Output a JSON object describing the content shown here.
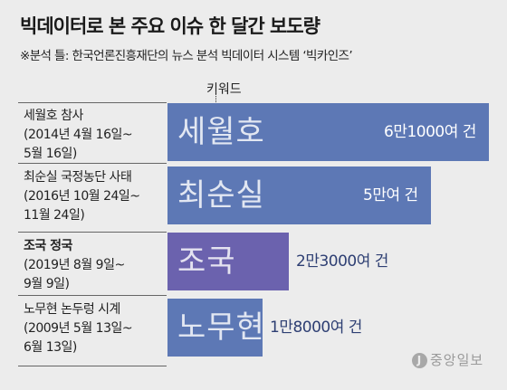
{
  "header": {
    "title": "빅데이터로 본 주요 이슈 한 달간 보도량",
    "source": "※분석 틀: 한국언론진흥재단의 뉴스 분석 빅데이터 시스템 ‘빅카인즈’"
  },
  "legend": {
    "label": "키워드"
  },
  "logo": {
    "text": "중앙일보",
    "mark": "J"
  },
  "colors": {
    "background": "#ececec",
    "bar_blue": "#5d78b5",
    "bar_purple": "#6b62ae",
    "value_outside": "#2e3f73"
  },
  "chart_data": {
    "type": "bar",
    "orientation": "horizontal",
    "title": "빅데이터로 본 주요 이슈 한 달간 보도량",
    "xlabel": "",
    "ylabel": "",
    "rows": [
      {
        "name": "세월호 참사",
        "period": [
          "(2014년 4월 16일~",
          "5월 16일)"
        ],
        "keyword": "세월호",
        "value": 61000,
        "value_label": "6만1000여 건",
        "highlight": false
      },
      {
        "name": "최순실 국정농단 사태",
        "period": [
          "(2016년 10월 24일~",
          "11월 24일)"
        ],
        "keyword": "최순실",
        "value": 50000,
        "value_label": "5만여 건",
        "highlight": false
      },
      {
        "name": "조국 정국",
        "period": [
          "(2019년 8월 9일~",
          "9월 9일)"
        ],
        "keyword": "조국",
        "value": 23000,
        "value_label": "2만3000여 건",
        "highlight": true
      },
      {
        "name": "노무현 논두렁 시계",
        "period": [
          "(2009년 5월 13일~",
          "6월 13일)"
        ],
        "keyword": "노무현",
        "value": 18000,
        "value_label": "1만8000여 건",
        "highlight": false
      }
    ]
  }
}
